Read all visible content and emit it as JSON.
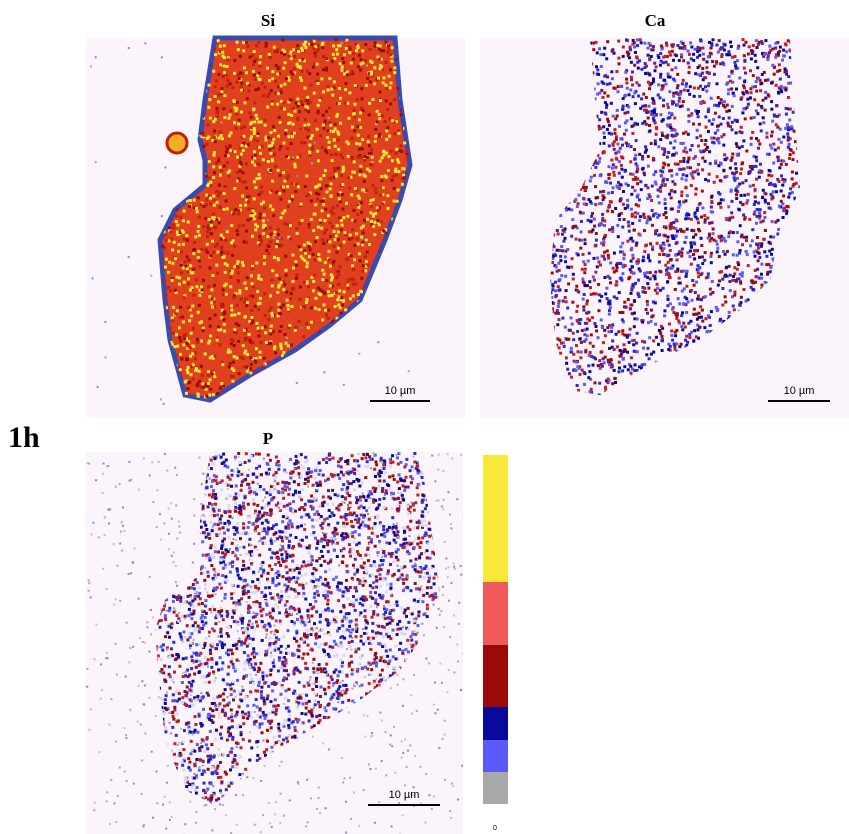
{
  "figure": {
    "label": "1h",
    "panels": [
      {
        "title": "Si",
        "scale_bar": "10 µm"
      },
      {
        "title": "Ca",
        "scale_bar": "10 µm"
      },
      {
        "title": "P",
        "scale_bar": "10 µm"
      }
    ],
    "colorbar": {
      "min_label": "0"
    }
  }
}
